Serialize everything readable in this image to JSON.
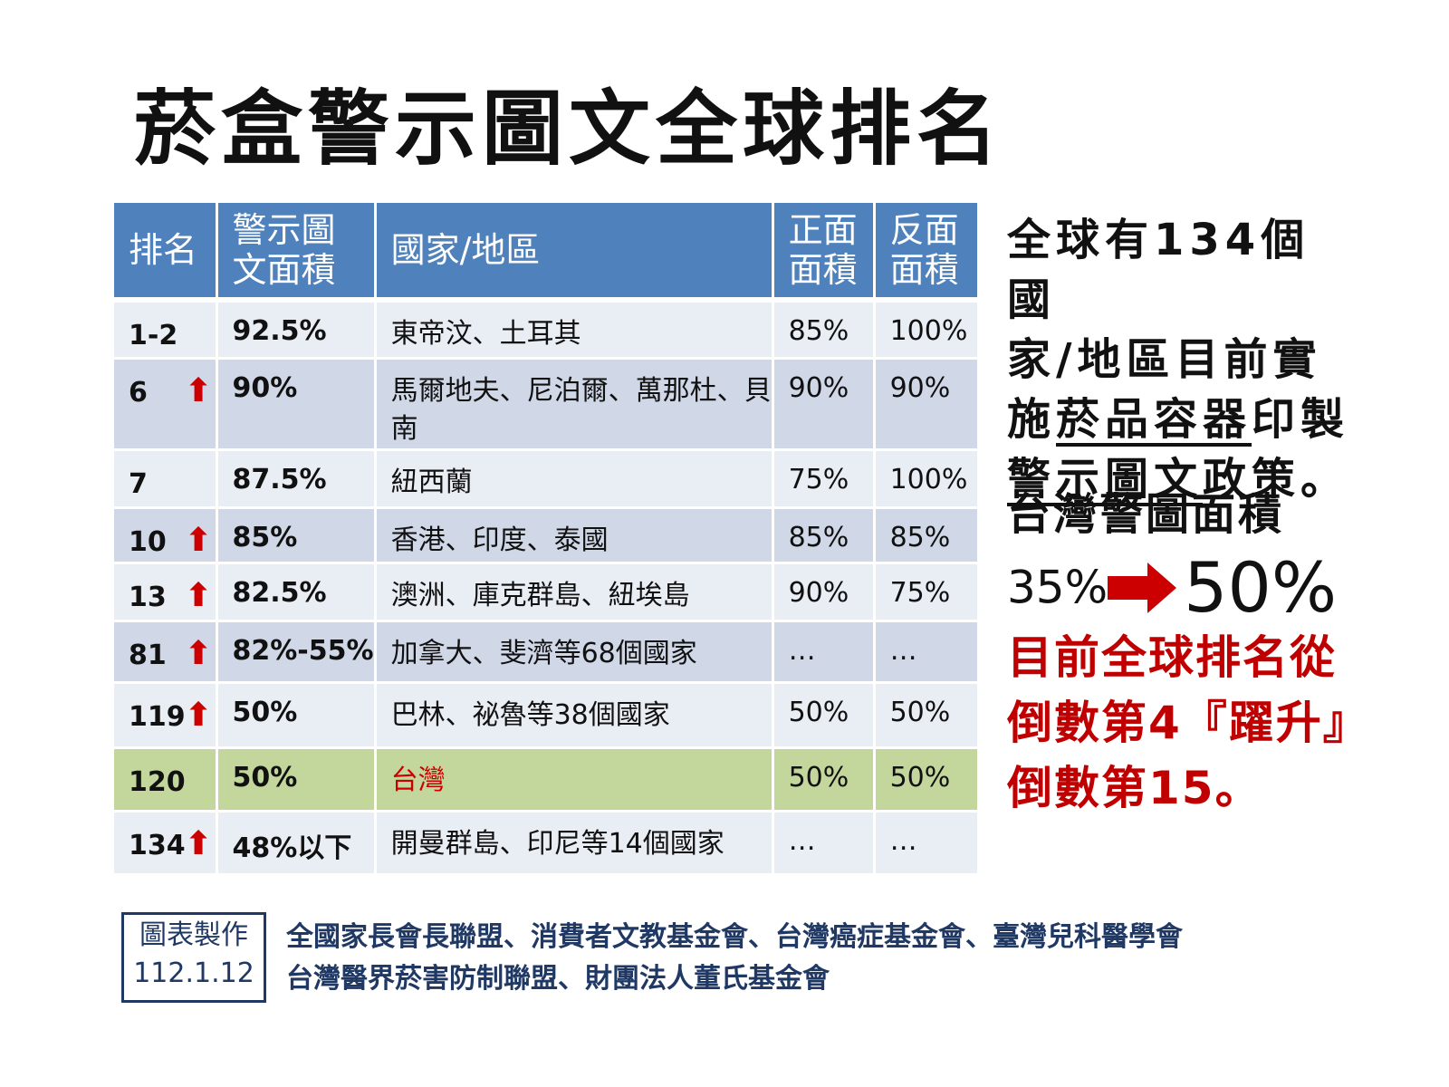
{
  "title": "菸盒警示圖文全球排名",
  "table": {
    "headers": {
      "rank": "排名",
      "area_line1": "警示圖",
      "area_line2": "文面積",
      "country": "國家/地區",
      "front_line1": "正面",
      "front_line2": "面積",
      "back_line1": "反面",
      "back_line2": "面積"
    },
    "rows": [
      {
        "rank": "1-2",
        "arrow": "",
        "area": "92.5%",
        "country": "東帝汶、土耳其",
        "front": "85%",
        "back": "100%"
      },
      {
        "rank": "6",
        "arrow": "⬆",
        "area": "90%",
        "country": "馬爾地夫、尼泊爾、萬那杜、貝南",
        "front": "90%",
        "back": "90%"
      },
      {
        "rank": "7",
        "arrow": "",
        "area": "87.5%",
        "country": "紐西蘭",
        "front": "75%",
        "back": "100%"
      },
      {
        "rank": "10",
        "arrow": "⬆",
        "area": "85%",
        "country": "香港、印度、泰國",
        "front": "85%",
        "back": "85%"
      },
      {
        "rank": "13",
        "arrow": "⬆",
        "area": "82.5%",
        "country": "澳洲、庫克群島、紐埃島",
        "front": "90%",
        "back": "75%"
      },
      {
        "rank": "81",
        "arrow": "⬆",
        "area": "82%-55%",
        "country": "加拿大、斐濟等68個國家",
        "front": "…",
        "back": "…"
      },
      {
        "rank": "119",
        "arrow": "⬆",
        "area": "50%",
        "country": "巴林、祕魯等38個國家",
        "front": "50%",
        "back": "50%"
      },
      {
        "rank": "120",
        "arrow": "",
        "area": "50%",
        "country": "台灣",
        "front": "50%",
        "back": "50%"
      },
      {
        "rank": "134",
        "arrow": "⬆",
        "area": "48%以下",
        "country": "開曼群島、印尼等14個國家",
        "front": "…",
        "back": "…"
      }
    ]
  },
  "side": {
    "p1_line1": "全球有134個國",
    "p1_line2": "家/地區目前實",
    "p1_line3a": "施",
    "p1_line3b": "菸品容器",
    "p1_line3c": "印製",
    "p1_line4a": "警示圖文",
    "p1_line4b": "政策。",
    "p2": "台灣警圖面積",
    "from": "35%",
    "to": "50%",
    "p3_line1": "目前全球排名從",
    "p3_line2": "倒數第4『躍升』",
    "p3_line3": "倒數第15。"
  },
  "credit": {
    "box_line1": "圖表製作",
    "box_line2": "112.1.12",
    "line1": "全國家長會長聯盟、消費者文教基金會、台灣癌症基金會、臺灣兒科醫學會",
    "line2": "台灣醫界菸害防制聯盟、財團法人董氏基金會"
  },
  "colors": {
    "header_bg": "#4f81bd",
    "row_light": "#e9edf4",
    "row_dark": "#d0d8e8",
    "highlight_row": "#c3d69b",
    "accent_red": "#cc0000",
    "credit_navy": "#1f3864"
  }
}
